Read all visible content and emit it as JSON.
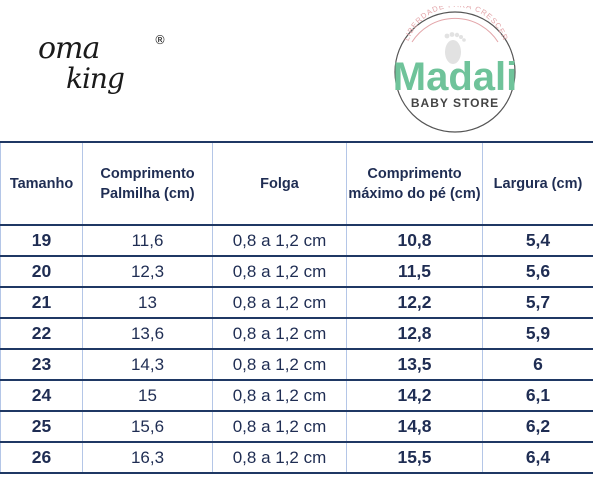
{
  "logos": {
    "omaking": {
      "line1": "oma",
      "line2": "king",
      "mark": "®"
    },
    "madali": {
      "arc_text": "LIBERDADE PARA CRESCER",
      "name": "Madali",
      "subtitle": "BABY STORE",
      "brand_color": "#6fc39a"
    }
  },
  "table": {
    "headers": [
      "Tamanho",
      "Comprimento Palmilha (cm)",
      "Folga",
      "Comprimento máximo do pé (cm)",
      "Largura (cm)"
    ],
    "rows": [
      [
        "19",
        "11,6",
        "0,8 a 1,2 cm",
        "10,8",
        "5,4"
      ],
      [
        "20",
        "12,3",
        "0,8 a 1,2 cm",
        "11,5",
        "5,6"
      ],
      [
        "21",
        "13",
        "0,8 a 1,2 cm",
        "12,2",
        "5,7"
      ],
      [
        "22",
        "13,6",
        "0,8 a 1,2 cm",
        "12,8",
        "5,9"
      ],
      [
        "23",
        "14,3",
        "0,8 a 1,2 cm",
        "13,5",
        "6"
      ],
      [
        "24",
        "15",
        "0,8 a 1,2 cm",
        "14,2",
        "6,1"
      ],
      [
        "25",
        "15,6",
        "0,8 a 1,2 cm",
        "14,8",
        "6,2"
      ],
      [
        "26",
        "16,3",
        "0,8 a 1,2 cm",
        "15,5",
        "6,4"
      ]
    ],
    "header_color": "#1f3864",
    "grid_color": "#b4c6e7"
  }
}
